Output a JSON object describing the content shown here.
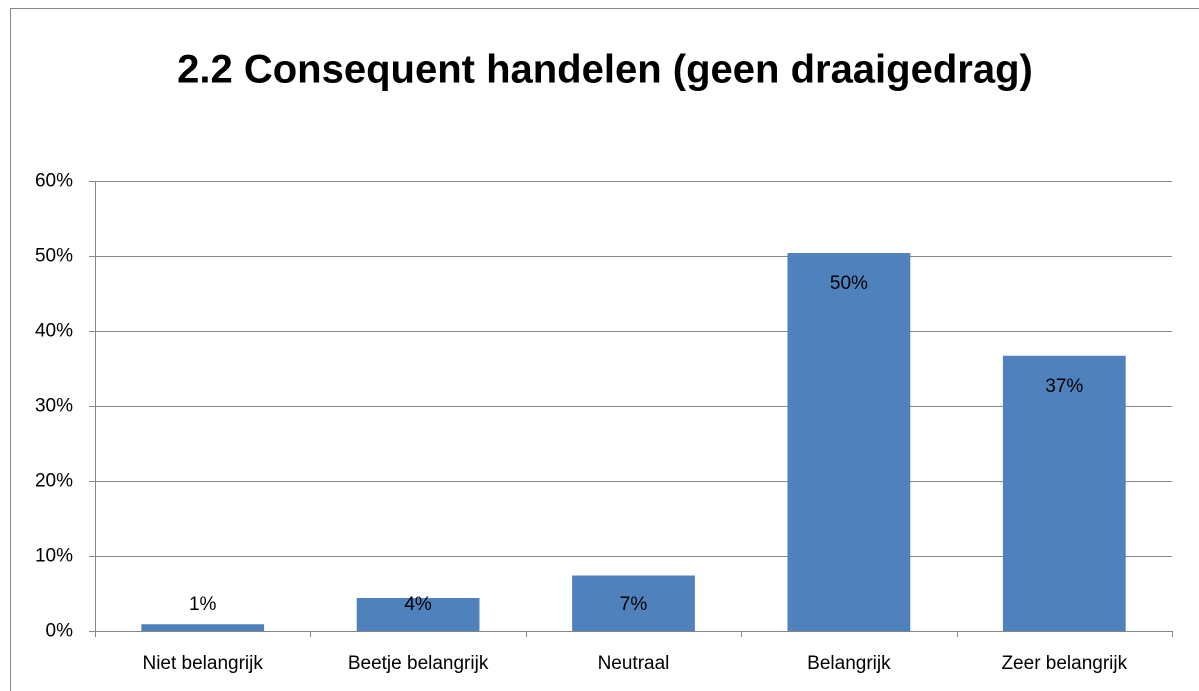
{
  "chart_data": {
    "type": "bar",
    "title": "2.2 Consequent handelen (geen draaigedrag)",
    "categories": [
      "Niet belangrijk",
      "Beetje belangrijk",
      "Neutraal",
      "Belangrijk",
      "Zeer belangrijk"
    ],
    "values": [
      0.9,
      4.4,
      7.4,
      50.4,
      36.7
    ],
    "value_labels": [
      "1%",
      "4%",
      "7%",
      "50%",
      "37%"
    ],
    "color": "#4f81bd",
    "ylim": [
      0,
      60
    ],
    "yticks": [
      {
        "value": 0,
        "label": "0%"
      },
      {
        "value": 10,
        "label": "10%"
      },
      {
        "value": 20,
        "label": "20%"
      },
      {
        "value": 30,
        "label": "30%"
      },
      {
        "value": 40,
        "label": "40%"
      },
      {
        "value": 50,
        "label": "50%"
      },
      {
        "value": 60,
        "label": "60%"
      }
    ],
    "grid": true
  }
}
